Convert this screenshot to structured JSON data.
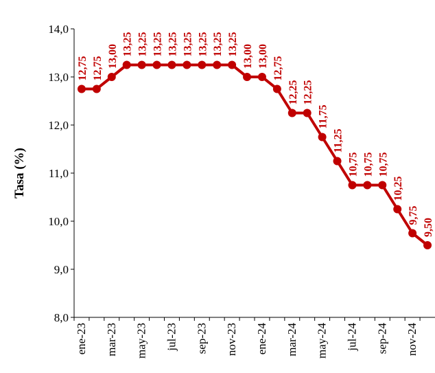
{
  "chart_data": {
    "type": "line",
    "y_label": "Tasa (%)",
    "categories": [
      "ene-23",
      null,
      "mar-23",
      null,
      "may-23",
      null,
      "jul-23",
      null,
      "sep-23",
      null,
      "nov-23",
      null,
      "ene-24",
      null,
      "mar-24",
      null,
      "may-24",
      null,
      "jul-24",
      null,
      "sep-24",
      null,
      "nov-24",
      null
    ],
    "series": [
      {
        "name": "Tasa",
        "color": "#c00000",
        "values": [
          12.75,
          12.75,
          13.0,
          13.25,
          13.25,
          13.25,
          13.25,
          13.25,
          13.25,
          13.25,
          13.25,
          13.0,
          13.0,
          12.75,
          12.25,
          12.25,
          11.75,
          11.25,
          10.75,
          10.75,
          10.75,
          10.25,
          9.75,
          9.5
        ],
        "value_labels": [
          "12,75",
          "12,75",
          "13,00",
          "13,25",
          "13,25",
          "13,25",
          "13,25",
          "13,25",
          "13,25",
          "13,25",
          "13,25",
          "13,00",
          "13,00",
          "12,75",
          "12,25",
          "12,25",
          "11,75",
          "11,25",
          "10,75",
          "10,75",
          "10,75",
          "10,25",
          "9,75",
          "9,50"
        ]
      }
    ],
    "ylim": [
      8,
      14
    ],
    "yticks": [
      {
        "value": 8,
        "label": "8,0"
      },
      {
        "value": 9,
        "label": "9,0"
      },
      {
        "value": 10,
        "label": "10,0"
      },
      {
        "value": 11,
        "label": "11,0"
      },
      {
        "value": 12,
        "label": "12,0"
      },
      {
        "value": 13,
        "label": "13,0"
      },
      {
        "value": 14,
        "label": "14,0"
      }
    ],
    "grid": false
  }
}
